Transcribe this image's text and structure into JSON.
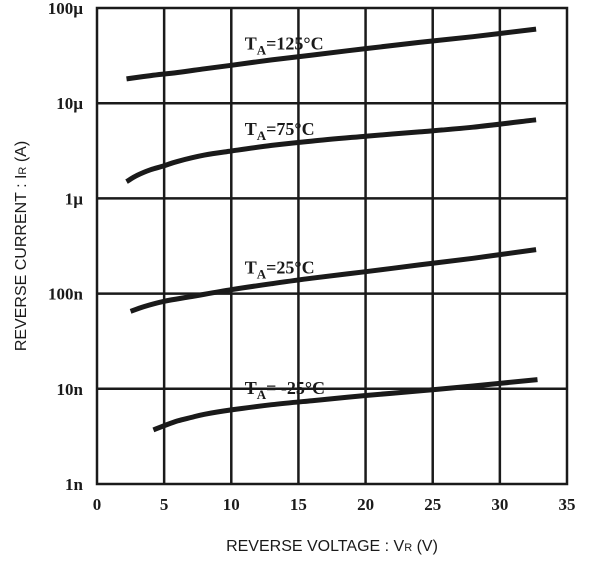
{
  "chart_data": {
    "type": "line",
    "xlabel": "REVERSE  VOLTAGE : V",
    "xlabel_sub": "R",
    "xlabel_tail": " (V)",
    "ylabel": "REVERSE  CURRENT : I",
    "ylabel_sub": "R",
    "ylabel_tail": " (A)",
    "xlim": [
      0,
      35
    ],
    "ylim": [
      1e-09,
      0.0001
    ],
    "yscale": "log",
    "grid": true,
    "x_ticks": [
      0,
      5,
      10,
      15,
      20,
      25,
      30,
      35
    ],
    "x_tick_labels": [
      "0",
      "5",
      "10",
      "15",
      "20",
      "25",
      "30",
      "35"
    ],
    "y_ticks": [
      1e-09,
      1e-08,
      1e-07,
      1e-06,
      1e-05,
      0.0001
    ],
    "y_tick_labels": [
      "1n",
      "10n",
      "100n",
      "1µ",
      "10µ",
      "100µ"
    ],
    "series": [
      {
        "name_main": "T",
        "name_sub": "A",
        "name_tail": "=125°C",
        "label_x": 11,
        "x": [
          2.2,
          4,
          6,
          8,
          10,
          13,
          16,
          20,
          24,
          28,
          32.7
        ],
        "y": [
          1.8e-05,
          1.95e-05,
          2.1e-05,
          2.3e-05,
          2.5e-05,
          2.85e-05,
          3.2e-05,
          3.75e-05,
          4.35e-05,
          5e-05,
          6e-05
        ]
      },
      {
        "name_main": "T",
        "name_sub": "A",
        "name_tail": "=75°C",
        "label_x": 11,
        "x": [
          2.2,
          3,
          4,
          5,
          6,
          8,
          10,
          13,
          16,
          20,
          24,
          28,
          32.7
        ],
        "y": [
          1.5e-06,
          1.75e-06,
          2e-06,
          2.2e-06,
          2.45e-06,
          2.85e-06,
          3.15e-06,
          3.6e-06,
          4e-06,
          4.5e-06,
          5e-06,
          5.6e-06,
          6.7e-06
        ]
      },
      {
        "name_main": "T",
        "name_sub": "A",
        "name_tail": "=25°C",
        "label_x": 11,
        "x": [
          2.5,
          3.5,
          5,
          7,
          10,
          13,
          16,
          20,
          24,
          28,
          32.7
        ],
        "y": [
          6.5e-08,
          7.3e-08,
          8.3e-08,
          9.3e-08,
          1.1e-07,
          1.27e-07,
          1.45e-07,
          1.7e-07,
          2e-07,
          2.35e-07,
          2.9e-07
        ]
      },
      {
        "name_main": "T",
        "name_sub": "A",
        "name_tail": "= -25°C",
        "label_x": 11,
        "x": [
          4.2,
          5,
          6,
          7,
          8,
          10,
          13,
          16,
          20,
          24,
          28,
          32.8
        ],
        "y": [
          3.7e-09,
          4.1e-09,
          4.6e-09,
          5e-09,
          5.4e-09,
          6e-09,
          6.8e-09,
          7.5e-09,
          8.5e-09,
          9.5e-09,
          1.07e-08,
          1.25e-08
        ]
      }
    ]
  }
}
